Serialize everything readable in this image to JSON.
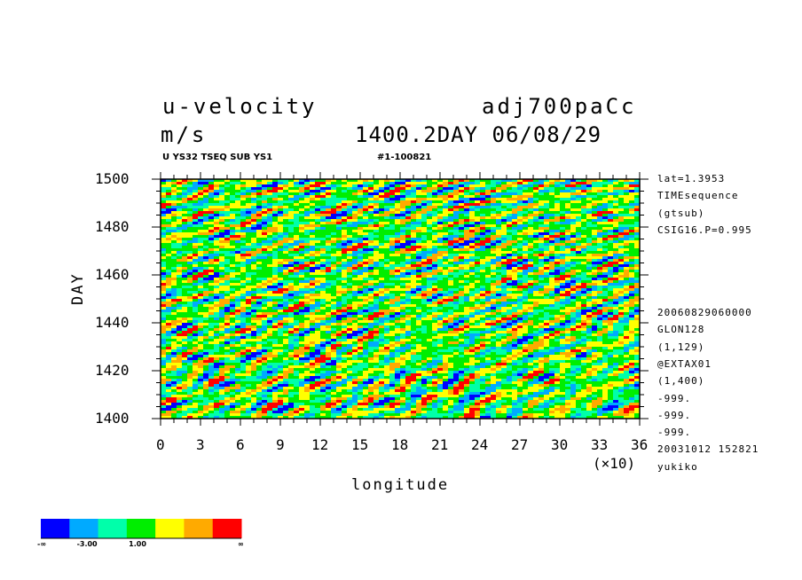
{
  "header": {
    "title_left": "u-velocity",
    "title_right": "adj700paCc",
    "units": "m/s",
    "time_label": "1400.2DAY 06/08/29",
    "subtitle_left": "U YS32 TSEQ SUB YS1",
    "subtitle_right": "#1-100821"
  },
  "side_info": {
    "top": [
      "lat=1.3953",
      "TIMEsequence",
      "(gtsub)",
      "CSIG16.P=0.995"
    ],
    "bottom": [
      "20060829060000",
      "GLON128",
      "(1,129)",
      "@EXTAX01",
      "(1,400)",
      "-999.",
      "-999.",
      "-999.",
      "20031012 152821",
      "yukiko"
    ]
  },
  "colorbar": {
    "colors": [
      "#0000ff",
      "#00aaff",
      "#00ffaa",
      "#00ee00",
      "#ffff00",
      "#ffaa00",
      "#ff0000"
    ],
    "labels": [
      "-∞",
      "-3.00",
      "1.00",
      "∞"
    ]
  },
  "chart_data": {
    "type": "heatmap",
    "title": "u-velocity",
    "xlabel": "longitude",
    "xlabel_multiplier": "(×10)",
    "ylabel": "DAY",
    "xlim": [
      0,
      36
    ],
    "ylim": [
      1400,
      1500
    ],
    "x_ticks": [
      "0",
      "3",
      "6",
      "9",
      "12",
      "15",
      "18",
      "21",
      "24",
      "27",
      "30",
      "33",
      "36"
    ],
    "y_ticks": [
      "1400",
      "1420",
      "1440",
      "1460",
      "1480",
      "1500"
    ],
    "grid": false,
    "colormap": [
      "#0000ff",
      "#00aaff",
      "#00ffaa",
      "#00ee00",
      "#ffff00",
      "#ffaa00",
      "#ff0000"
    ],
    "contour_levels": [
      "-∞",
      "-3.00",
      "1.00",
      "∞"
    ]
  }
}
